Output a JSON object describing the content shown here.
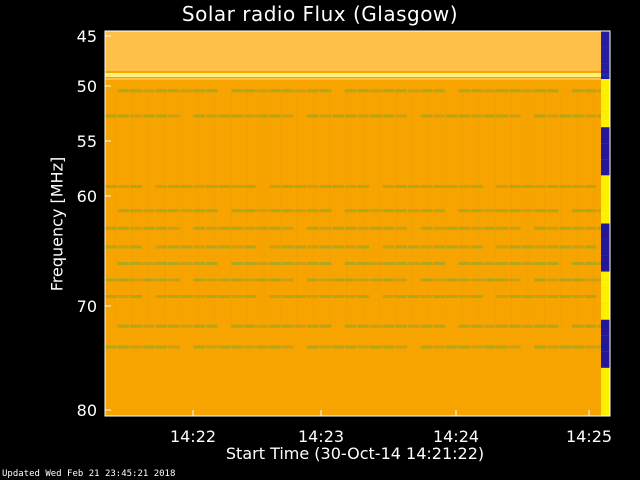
{
  "chart_data": {
    "type": "heatmap",
    "title": "Solar radio Flux (Glasgow)",
    "xlabel": "Start Time (30-Oct-14 14:21:22)",
    "ylabel": "Frequency [MHz]",
    "x_ticks": [
      "14:22",
      "14:23",
      "14:24",
      "14:25"
    ],
    "y_ticks": [
      45,
      50,
      55,
      60,
      70,
      80
    ],
    "xlim": [
      "14:21:22",
      "14:25:12"
    ],
    "ylim": [
      45,
      80
    ],
    "colors": {
      "background": "#000000",
      "base": "#F7A300",
      "band_light": "#FFC04A",
      "band_bright": "#FFF27A",
      "band_dark": "#B7A01A",
      "band_green": "#9DA523"
    },
    "bright_band_mhz": [
      48.7,
      49.1
    ],
    "horizontal_lines_mhz": [
      50.3,
      52.6,
      59.0,
      61.2,
      62.8,
      64.5,
      66.0,
      67.5,
      69.0,
      71.8,
      73.8
    ],
    "colorbar_colors": [
      "#0000B0",
      "#FF0000",
      "#FFFFFF",
      "#FFFF00",
      "#000000",
      "#FF8000"
    ]
  },
  "footer": "Updated Wed Feb 21 23:45:21 2018"
}
